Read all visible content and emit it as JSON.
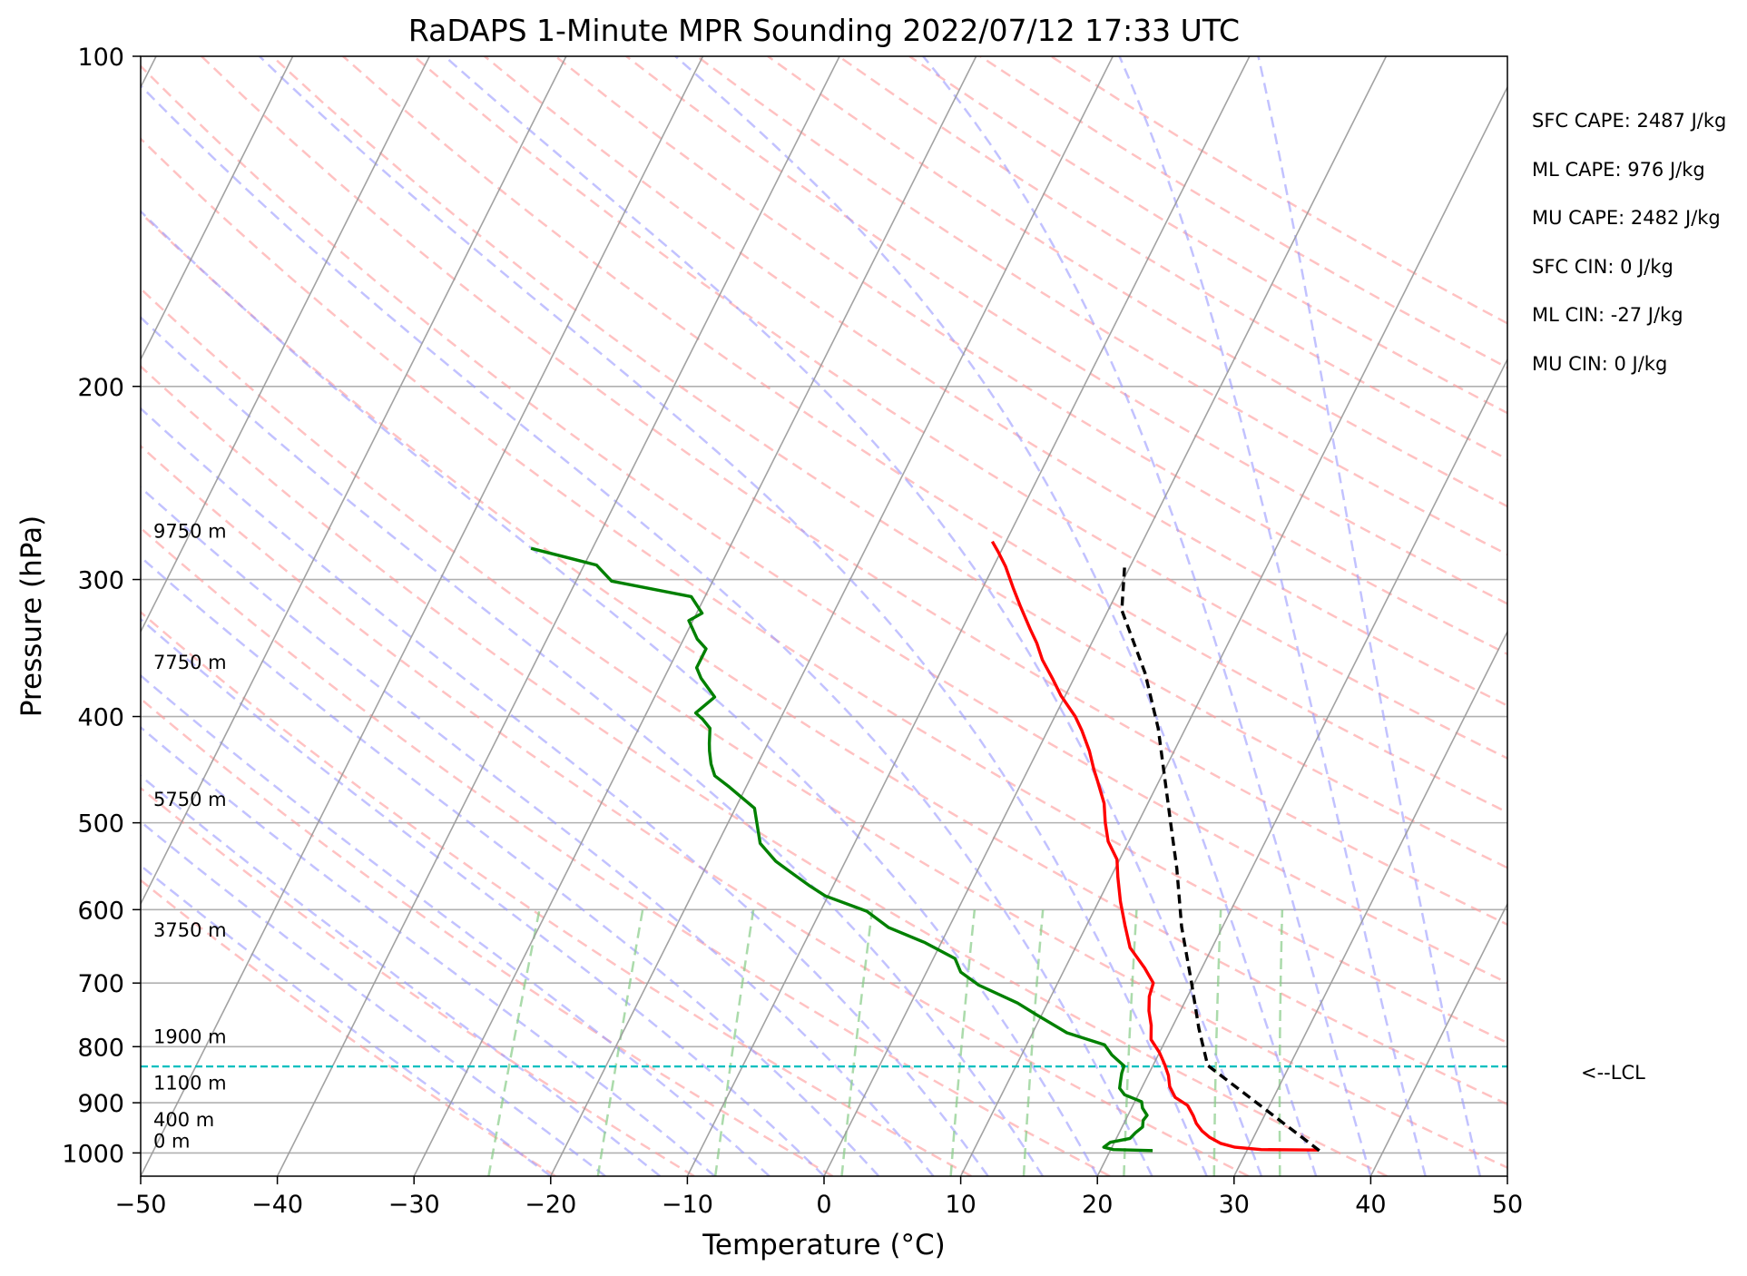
{
  "chart_data": {
    "type": "line",
    "subtype": "skew-T log-P sounding",
    "title": "RaDAPS 1-Minute MPR Sounding 2022/07/12 17:33 UTC",
    "xlabel": "Temperature (°C)",
    "ylabel": "Pressure (hPa)",
    "xlim": [
      -50,
      50
    ],
    "ylim": [
      1050,
      100
    ],
    "y_scale": "log",
    "x_ticks": [
      -50,
      -40,
      -30,
      -20,
      -10,
      0,
      10,
      20,
      30,
      40,
      50
    ],
    "y_ticks": [
      100,
      200,
      300,
      400,
      500,
      600,
      700,
      800,
      900,
      1000
    ],
    "x_tick_labels": [
      "−50",
      "−40",
      "−30",
      "−20",
      "−10",
      "0",
      "10",
      "20",
      "30",
      "40",
      "50"
    ],
    "y_tick_labels": [
      "100",
      "200",
      "300",
      "400",
      "500",
      "600",
      "700",
      "800",
      "900",
      "1000"
    ],
    "grid": true,
    "series": [
      {
        "name": "temperature",
        "color": "#ff0000",
        "points": [
          [
            35.2,
            994
          ],
          [
            31,
            993
          ],
          [
            29,
            988
          ],
          [
            27.8,
            980
          ],
          [
            26.8,
            968
          ],
          [
            26,
            955
          ],
          [
            25.3,
            940
          ],
          [
            24.8,
            925
          ],
          [
            24,
            905
          ],
          [
            22.8,
            890
          ],
          [
            22,
            870
          ],
          [
            21.5,
            850
          ],
          [
            20.8,
            830
          ],
          [
            20,
            810
          ],
          [
            18.9,
            788
          ],
          [
            18.4,
            765
          ],
          [
            17.7,
            742
          ],
          [
            17.2,
            720
          ],
          [
            17,
            700
          ],
          [
            15.8,
            678
          ],
          [
            14,
            650
          ],
          [
            12.8,
            620
          ],
          [
            11.6,
            590
          ],
          [
            10.5,
            560
          ],
          [
            9.8,
            540
          ],
          [
            8.5,
            520
          ],
          [
            7.6,
            500
          ],
          [
            6.8,
            480
          ],
          [
            5.5,
            458
          ],
          [
            4.8,
            447
          ],
          [
            3.8,
            430
          ],
          [
            2.5,
            412
          ],
          [
            1.5,
            400
          ],
          [
            -0.3,
            383
          ],
          [
            -1.5,
            370
          ],
          [
            -3,
            355
          ],
          [
            -4,
            343
          ],
          [
            -5,
            333
          ],
          [
            -6.5,
            318
          ],
          [
            -7.8,
            305
          ],
          [
            -9.1,
            292
          ],
          [
            -10.2,
            283
          ],
          [
            -11,
            277
          ]
        ]
      },
      {
        "name": "dewpoint",
        "color": "#008000",
        "points": [
          [
            23.1,
            995
          ],
          [
            20.2,
            993
          ],
          [
            19.4,
            988
          ],
          [
            19.7,
            978
          ],
          [
            21,
            970
          ],
          [
            21.2,
            958
          ],
          [
            21.5,
            947
          ],
          [
            21.3,
            934
          ],
          [
            21.4,
            924
          ],
          [
            20.8,
            910
          ],
          [
            20.5,
            898
          ],
          [
            19,
            885
          ],
          [
            18.4,
            873
          ],
          [
            18.2,
            860
          ],
          [
            18,
            846
          ],
          [
            17.9,
            833
          ],
          [
            16.6,
            814
          ],
          [
            15.7,
            797
          ],
          [
            12.5,
            777
          ],
          [
            9.6,
            748
          ],
          [
            7.8,
            730
          ],
          [
            4.3,
            703
          ],
          [
            2.5,
            684
          ],
          [
            1.6,
            665
          ],
          [
            -1.2,
            643
          ],
          [
            -4.4,
            623
          ],
          [
            -6.6,
            602
          ],
          [
            -10.2,
            583
          ],
          [
            -11.8,
            570
          ],
          [
            -13.8,
            553
          ],
          [
            -15.1,
            542
          ],
          [
            -16.9,
            522
          ],
          [
            -18.6,
            485
          ],
          [
            -21.2,
            464
          ],
          [
            -22.7,
            453
          ],
          [
            -23.4,
            442
          ],
          [
            -24.0,
            430
          ],
          [
            -24.3,
            423
          ],
          [
            -24.8,
            410
          ],
          [
            -25.7,
            402
          ],
          [
            -26.4,
            397
          ],
          [
            -25.6,
            384
          ],
          [
            -27.3,
            369
          ],
          [
            -28,
            361
          ],
          [
            -28,
            347
          ],
          [
            -29,
            340
          ],
          [
            -30.3,
            327
          ],
          [
            -29.6,
            322
          ],
          [
            -31,
            311
          ],
          [
            -37.4,
            301
          ],
          [
            -39.1,
            291
          ],
          [
            -44.5,
            281
          ]
        ]
      },
      {
        "name": "parcel",
        "color": "#000000",
        "style": "dashed",
        "points": [
          [
            35.3,
            995
          ],
          [
            24,
            832
          ],
          [
            22,
            770
          ],
          [
            19.8,
            700
          ],
          [
            17,
            622
          ],
          [
            14.5,
            550
          ],
          [
            12.6,
            505
          ],
          [
            10.2,
            453
          ],
          [
            8.0,
            410
          ],
          [
            5.0,
            365
          ],
          [
            1.0,
            320
          ],
          [
            -0.5,
            290
          ]
        ]
      }
    ],
    "lcl_pressure": 834,
    "lcl_label": "<--LCL",
    "height_labels": [
      {
        "text": "9750 m",
        "p": 278
      },
      {
        "text": "7750 m",
        "p": 366
      },
      {
        "text": "5750 m",
        "p": 488
      },
      {
        "text": "3750 m",
        "p": 642
      },
      {
        "text": "1900 m",
        "p": 803
      },
      {
        "text": "1100 m",
        "p": 885
      },
      {
        "text": "400 m",
        "p": 956
      },
      {
        "text": "0 m",
        "p": 1000
      }
    ],
    "stats": [
      "SFC CAPE: 2487 J/kg",
      "ML CAPE: 976 J/kg",
      "MU CAPE: 2482 J/kg",
      "SFC CIN: 0 J/kg",
      "ML CIN: -27 J/kg",
      "MU CIN: 0 J/kg"
    ],
    "colors": {
      "temperature": "#ff0000",
      "dewpoint": "#008000",
      "parcel": "#000000",
      "lcl": "#00bfbf",
      "dry_adiabats": "#ff9999",
      "moist_adiabats": "#9999ff",
      "mixing_ratio": "#88cc88",
      "isotherms": "#999999"
    }
  }
}
